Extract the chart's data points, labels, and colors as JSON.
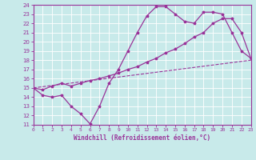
{
  "line1_x": [
    0,
    1,
    2,
    3,
    4,
    5,
    6,
    7,
    8,
    9,
    10,
    11,
    12,
    13,
    14,
    15,
    16,
    17,
    18,
    19,
    20,
    21,
    22,
    23
  ],
  "line1_y": [
    15,
    14.2,
    14,
    14.2,
    13,
    12.2,
    11.1,
    13,
    15.5,
    17,
    19,
    21,
    22.8,
    23.8,
    23.8,
    23,
    22.2,
    22,
    23.2,
    23.2,
    23,
    21,
    19,
    18.2
  ],
  "line2_x": [
    0,
    1,
    2,
    3,
    4,
    5,
    6,
    7,
    8,
    9,
    10,
    11,
    12,
    13,
    14,
    15,
    16,
    17,
    18,
    19,
    20,
    21,
    22,
    23
  ],
  "line2_y": [
    15,
    14.8,
    15.2,
    15.5,
    15.2,
    15.5,
    15.8,
    16.0,
    16.3,
    16.6,
    17.0,
    17.3,
    17.8,
    18.2,
    18.8,
    19.2,
    19.8,
    20.5,
    21.0,
    22.0,
    22.5,
    22.5,
    21.0,
    18.2
  ],
  "line3_x": [
    0,
    23
  ],
  "line3_y": [
    15,
    18
  ],
  "color": "#993399",
  "bgcolor": "#c8eaea",
  "xlabel": "Windchill (Refroidissement éolien,°C)",
  "ylim": [
    11,
    24
  ],
  "xlim": [
    0,
    23
  ],
  "yticks": [
    11,
    12,
    13,
    14,
    15,
    16,
    17,
    18,
    19,
    20,
    21,
    22,
    23,
    24
  ],
  "xticks": [
    0,
    1,
    2,
    3,
    4,
    5,
    6,
    7,
    8,
    9,
    10,
    11,
    12,
    13,
    14,
    15,
    16,
    17,
    18,
    19,
    20,
    21,
    22,
    23
  ]
}
